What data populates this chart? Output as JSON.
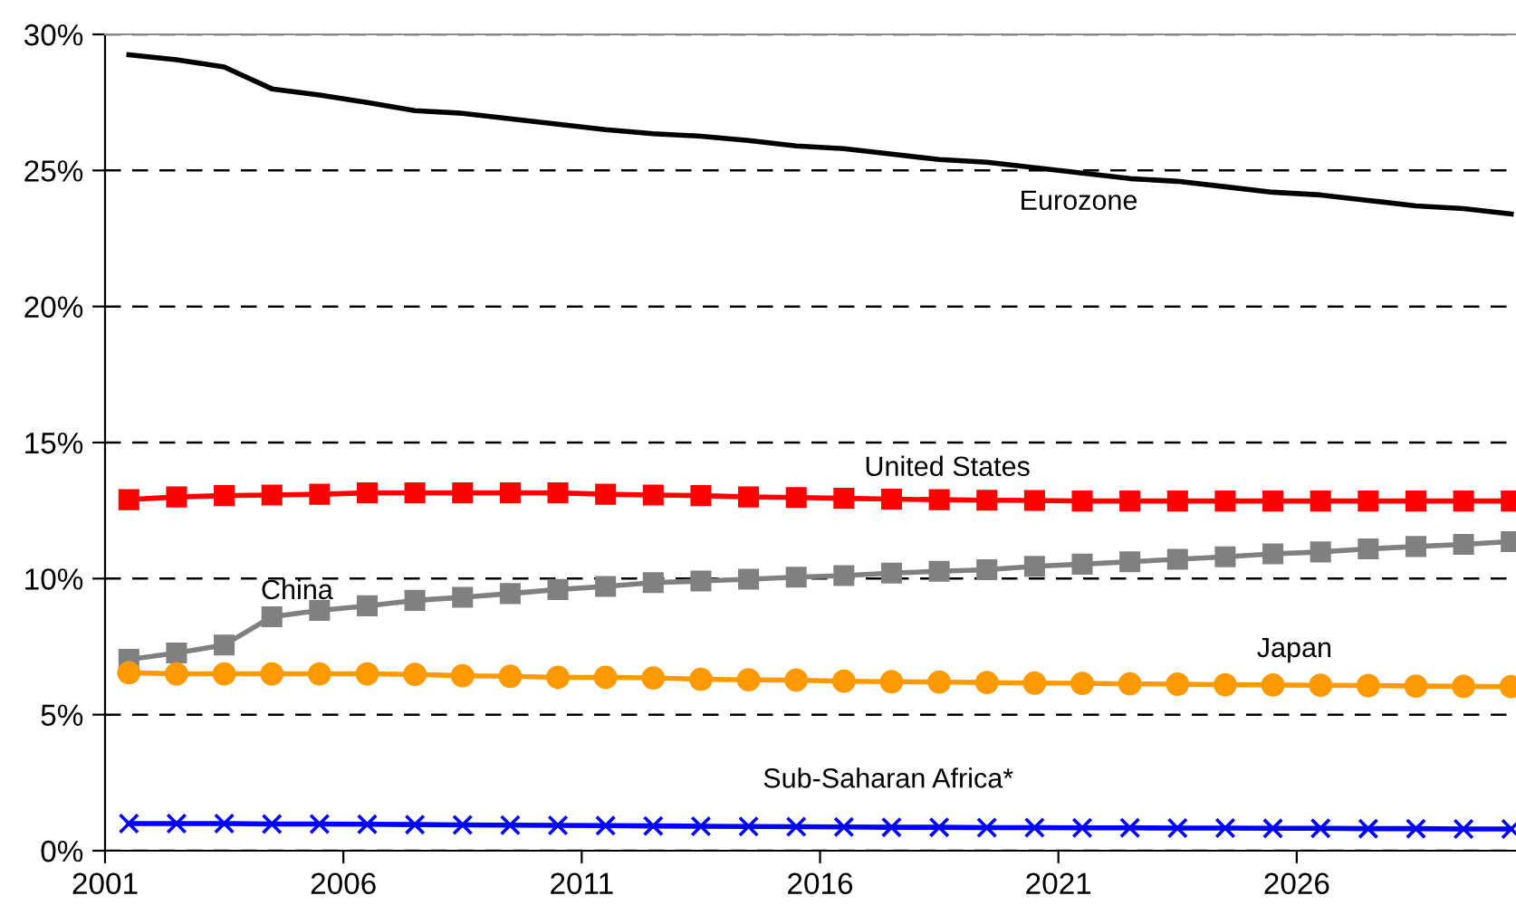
{
  "chart_data": {
    "type": "line",
    "x": [
      2001,
      2002,
      2003,
      2004,
      2005,
      2006,
      2007,
      2008,
      2009,
      2010,
      2011,
      2012,
      2013,
      2014,
      2015,
      2016,
      2017,
      2018,
      2019,
      2020,
      2021,
      2022,
      2023,
      2024,
      2025,
      2026,
      2027,
      2028,
      2029,
      2030
    ],
    "xlim": [
      2000.5,
      2030.1
    ],
    "xticks": [
      {
        "value": 2000.5,
        "label": "2001"
      },
      {
        "value": 2005.5,
        "label": "2006"
      },
      {
        "value": 2010.5,
        "label": "2011"
      },
      {
        "value": 2015.5,
        "label": "2016"
      },
      {
        "value": 2020.5,
        "label": "2021"
      },
      {
        "value": 2025.5,
        "label": "2026"
      }
    ],
    "ylim": [
      0,
      30
    ],
    "yticks": [
      {
        "value": 0,
        "label": "0%"
      },
      {
        "value": 5,
        "label": "5%"
      },
      {
        "value": 10,
        "label": "10%"
      },
      {
        "value": 15,
        "label": "15%"
      },
      {
        "value": 20,
        "label": "20%"
      },
      {
        "value": 25,
        "label": "25%"
      },
      {
        "value": 30,
        "label": "30%"
      }
    ],
    "grid": "y",
    "line_style": "solid",
    "series": [
      {
        "name": "Eurozone",
        "color": "#000000",
        "marker": "none",
        "values": [
          29.25,
          29.07,
          28.8,
          28.0,
          27.77,
          27.5,
          27.2,
          27.1,
          26.9,
          26.7,
          26.5,
          26.35,
          26.26,
          26.1,
          25.9,
          25.8,
          25.6,
          25.4,
          25.3,
          25.1,
          24.9,
          24.7,
          24.6,
          24.4,
          24.2,
          24.1,
          23.9,
          23.7,
          23.6,
          23.4
        ]
      },
      {
        "name": "United States",
        "color": "#ff0000",
        "marker": "square",
        "values": [
          12.9,
          13.0,
          13.05,
          13.07,
          13.1,
          13.15,
          13.15,
          13.15,
          13.15,
          13.15,
          13.1,
          13.07,
          13.05,
          13.0,
          12.98,
          12.95,
          12.92,
          12.9,
          12.88,
          12.87,
          12.85,
          12.85,
          12.85,
          12.85,
          12.85,
          12.85,
          12.85,
          12.85,
          12.85,
          12.85
        ]
      },
      {
        "name": "China",
        "color": "#808080",
        "marker": "square",
        "values": [
          7.03,
          7.27,
          7.56,
          8.6,
          8.83,
          9.0,
          9.2,
          9.31,
          9.45,
          9.6,
          9.71,
          9.85,
          9.91,
          9.98,
          10.05,
          10.11,
          10.2,
          10.27,
          10.33,
          10.45,
          10.53,
          10.62,
          10.71,
          10.8,
          10.91,
          10.98,
          11.09,
          11.18,
          11.26,
          11.36
        ]
      },
      {
        "name": "Japan",
        "color": "#ff9900",
        "marker": "circle",
        "values": [
          6.54,
          6.5,
          6.5,
          6.5,
          6.5,
          6.5,
          6.48,
          6.43,
          6.41,
          6.37,
          6.37,
          6.35,
          6.3,
          6.28,
          6.27,
          6.23,
          6.21,
          6.2,
          6.18,
          6.16,
          6.15,
          6.13,
          6.12,
          6.1,
          6.09,
          6.08,
          6.07,
          6.05,
          6.04,
          6.03
        ]
      },
      {
        "name": "Sub-Saharan Africa*",
        "color": "#0000ff",
        "marker": "cross",
        "values": [
          1.0,
          1.0,
          1.0,
          0.98,
          0.98,
          0.97,
          0.96,
          0.95,
          0.94,
          0.93,
          0.92,
          0.91,
          0.9,
          0.89,
          0.88,
          0.87,
          0.86,
          0.86,
          0.85,
          0.85,
          0.84,
          0.84,
          0.83,
          0.83,
          0.82,
          0.82,
          0.81,
          0.81,
          0.8,
          0.8
        ]
      }
    ]
  }
}
